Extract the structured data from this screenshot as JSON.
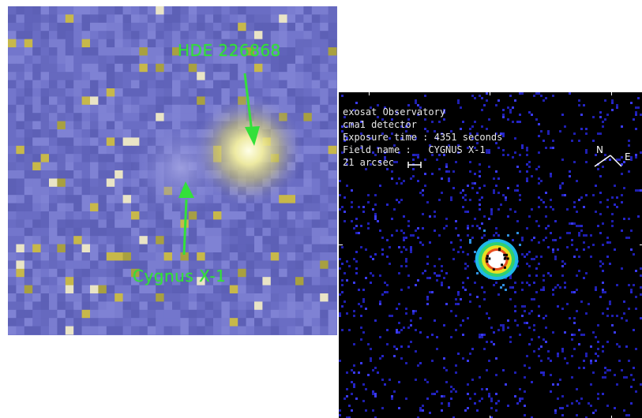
{
  "optical_image": {
    "labels": {
      "bright_star": "HDE 226868",
      "faint_source": "Cygnus X-1"
    },
    "colors": {
      "background": "#6f72c8",
      "label_and_arrows": "#33e03a",
      "star_glow": "#f2ef9a"
    }
  },
  "xray_image": {
    "info_lines": {
      "observatory": "exosat Observatory",
      "detector": "cma1 detector",
      "exposure": "Exposure time : 4351 seconds",
      "field": "Field name :   CYGNUS X-1",
      "scale": "21 arcsec"
    },
    "compass": {
      "north": "N",
      "east": "E"
    },
    "colors": {
      "background": "#000000",
      "noise": "#2a2ad8",
      "core": "#ffffff"
    }
  }
}
